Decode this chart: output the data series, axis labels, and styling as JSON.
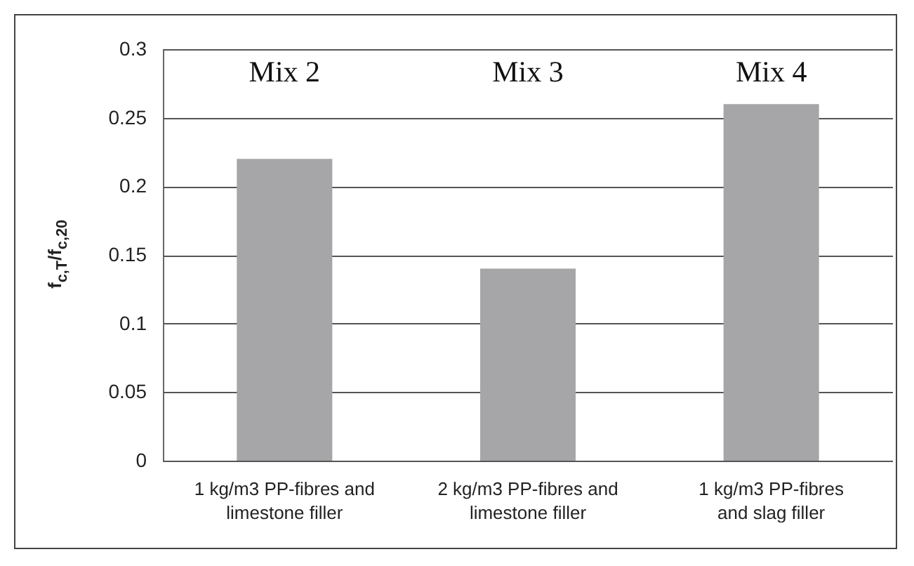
{
  "chart_data": {
    "type": "bar",
    "ylabel": "f$_{c,T}$/f$_{c,20}$",
    "categories": [
      "1 kg/m3 PP-fibres and limestone filler",
      "2 kg/m3 PP-fibres and limestone filler",
      "1 kg/m3 PP-fibres and slag filler"
    ],
    "values": [
      0.22,
      0.14,
      0.26
    ],
    "color": "#a6a6a8",
    "ylim": [
      0,
      0.3
    ],
    "yticks": [
      0,
      0.05,
      0.1,
      0.15,
      0.2,
      0.25,
      0.3
    ],
    "grid": "y",
    "annotations": [
      "Mix 2",
      "Mix 3",
      "Mix 4"
    ]
  }
}
